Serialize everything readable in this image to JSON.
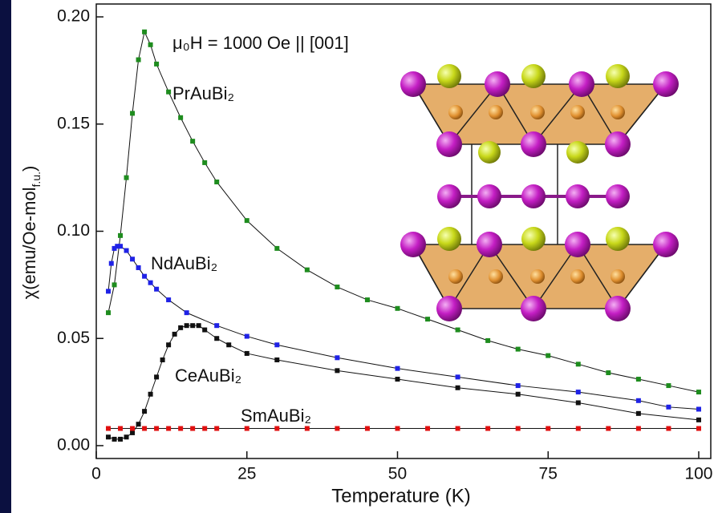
{
  "chart_data": {
    "type": "scatter",
    "x_label": "Temperature (K)",
    "y_label": {
      "main": "χ(emu/Oe-mol",
      "sub": "f.u.",
      "end": ")"
    },
    "annotation": "μ₀H = 1000 Oe || [001]",
    "xlim": [
      0,
      102
    ],
    "ylim": [
      -0.006,
      0.206
    ],
    "xticks": [
      0,
      25,
      50,
      75,
      100
    ],
    "yticks": [
      {
        "value": 0,
        "label": "0.00"
      },
      {
        "value": 0.05,
        "label": "0.05"
      },
      {
        "value": 0.1,
        "label": "0.10"
      },
      {
        "value": 0.15,
        "label": "0.15"
      },
      {
        "value": 0.2,
        "label": "0.20"
      }
    ],
    "grid": false,
    "series": [
      {
        "name": "PrAuBi₂",
        "color": "#1e8c1e",
        "x": [
          2,
          3,
          4,
          5,
          6,
          7,
          8,
          9,
          10,
          12,
          14,
          16,
          18,
          20,
          25,
          30,
          35,
          40,
          45,
          50,
          55,
          60,
          65,
          70,
          75,
          80,
          85,
          90,
          95,
          100
        ],
        "values": [
          0.062,
          0.075,
          0.098,
          0.125,
          0.155,
          0.18,
          0.193,
          0.187,
          0.178,
          0.165,
          0.153,
          0.142,
          0.132,
          0.123,
          0.105,
          0.092,
          0.082,
          0.074,
          0.068,
          0.064,
          0.059,
          0.054,
          0.049,
          0.045,
          0.042,
          0.038,
          0.034,
          0.031,
          0.028,
          0.025
        ]
      },
      {
        "name": "NdAuBi₂",
        "color": "#1f22e6",
        "x": [
          2,
          2.5,
          3,
          3.5,
          4,
          5,
          6,
          7,
          8,
          9,
          10,
          12,
          15,
          20,
          25,
          30,
          40,
          50,
          60,
          70,
          80,
          90,
          95,
          100
        ],
        "values": [
          0.072,
          0.085,
          0.092,
          0.093,
          0.093,
          0.091,
          0.087,
          0.083,
          0.079,
          0.076,
          0.073,
          0.068,
          0.062,
          0.056,
          0.051,
          0.047,
          0.041,
          0.036,
          0.032,
          0.028,
          0.025,
          0.021,
          0.018,
          0.017
        ]
      },
      {
        "name": "CeAuBi₂",
        "color": "#111111",
        "x": [
          2,
          3,
          4,
          5,
          6,
          7,
          8,
          9,
          10,
          11,
          12,
          13,
          14,
          15,
          16,
          17,
          18,
          20,
          22,
          25,
          30,
          40,
          50,
          60,
          70,
          80,
          90,
          100
        ],
        "values": [
          0.004,
          0.003,
          0.003,
          0.004,
          0.006,
          0.01,
          0.016,
          0.024,
          0.032,
          0.04,
          0.047,
          0.052,
          0.055,
          0.056,
          0.056,
          0.056,
          0.054,
          0.05,
          0.047,
          0.043,
          0.04,
          0.035,
          0.031,
          0.027,
          0.024,
          0.02,
          0.015,
          0.012
        ]
      },
      {
        "name": "SmAuBi₂",
        "color": "#e01010",
        "x": [
          2,
          4,
          6,
          8,
          10,
          12,
          14,
          16,
          18,
          20,
          25,
          30,
          35,
          40,
          45,
          50,
          55,
          60,
          65,
          70,
          75,
          80,
          85,
          90,
          95,
          100
        ],
        "values": [
          0.008,
          0.008,
          0.008,
          0.008,
          0.008,
          0.008,
          0.008,
          0.008,
          0.008,
          0.008,
          0.008,
          0.008,
          0.008,
          0.008,
          0.008,
          0.008,
          0.008,
          0.008,
          0.008,
          0.008,
          0.008,
          0.008,
          0.008,
          0.008,
          0.008,
          0.008
        ]
      }
    ]
  }
}
